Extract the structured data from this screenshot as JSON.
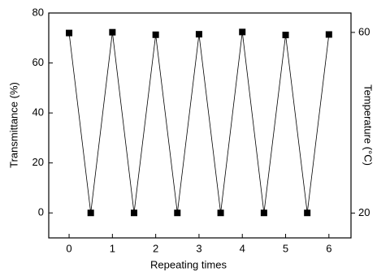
{
  "chart_data": {
    "type": "line",
    "x_label": "Repeating times",
    "y_label": "Transmittance (%)",
    "y2_label": "Temperature (°C)",
    "x": [
      0,
      0.5,
      1,
      1.5,
      2,
      2.5,
      3,
      3.5,
      4,
      4.5,
      5,
      5.5,
      6
    ],
    "values": [
      72,
      0,
      72.3,
      0,
      71.3,
      0,
      71.5,
      0,
      72.4,
      0,
      71.2,
      0,
      71.4
    ],
    "color": "#000000",
    "xlim": [
      -0.47,
      6.51
    ],
    "xticks": [
      0,
      1,
      2,
      3,
      4,
      5,
      6
    ],
    "ylim": [
      -10,
      80
    ],
    "yticks": [
      0,
      20,
      40,
      60,
      80
    ],
    "y2lim": [
      14.5,
      64.3
    ],
    "y2ticks": [
      20,
      60
    ],
    "grid": false
  }
}
